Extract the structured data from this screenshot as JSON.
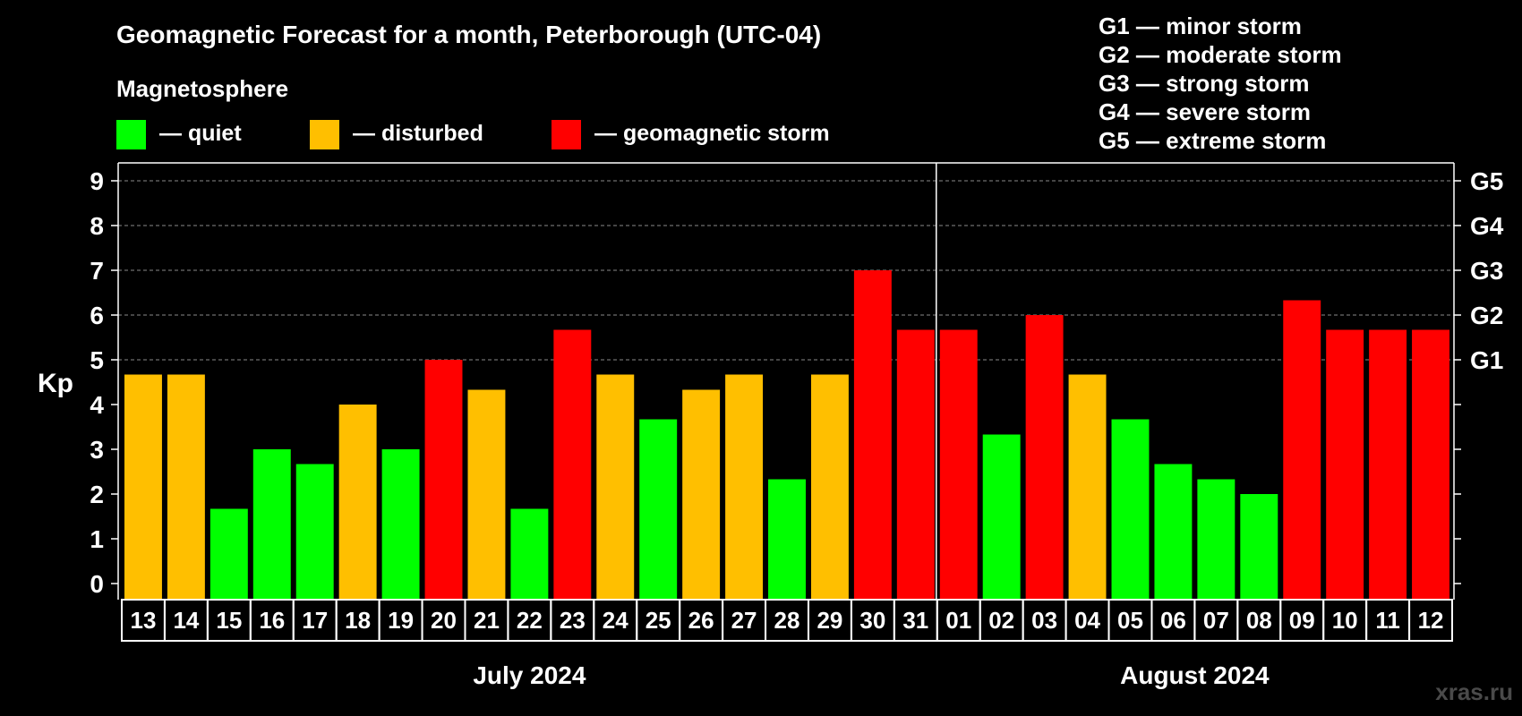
{
  "header": {
    "title": "Geomagnetic Forecast for a month, Peterborough (UTC-04)",
    "subtitle": "Magnetosphere"
  },
  "legend": {
    "quiet": "— quiet",
    "disturbed": "— disturbed",
    "storm": "— geomagnetic storm"
  },
  "g_legend": [
    "G1 — minor storm",
    "G2 — moderate storm",
    "G3 — strong storm",
    "G4 — severe storm",
    "G5 — extreme storm"
  ],
  "watermark": "xras.ru",
  "colors": {
    "quiet": "#00ff00",
    "disturbed": "#ffbf00",
    "storm": "#ff0000",
    "background": "#000000",
    "axis": "#ffffff",
    "grid": "#8a8a8a"
  },
  "chart_data": {
    "type": "bar",
    "title": "Geomagnetic Forecast for a month, Peterborough (UTC-04)",
    "ylabel": "Kp",
    "ylim": [
      0,
      9
    ],
    "y_ticks": [
      "0",
      "1",
      "2",
      "3",
      "4",
      "5",
      "6",
      "7",
      "8",
      "9"
    ],
    "grid_y": [
      5,
      6,
      7,
      8,
      9
    ],
    "g_ticks": [
      {
        "label": "G1",
        "kp": 5
      },
      {
        "label": "G2",
        "kp": 6
      },
      {
        "label": "G3",
        "kp": 7
      },
      {
        "label": "G4",
        "kp": 8
      },
      {
        "label": "G5",
        "kp": 9
      }
    ],
    "categories": [
      "13",
      "14",
      "15",
      "16",
      "17",
      "18",
      "19",
      "20",
      "21",
      "22",
      "23",
      "24",
      "25",
      "26",
      "27",
      "28",
      "29",
      "30",
      "31",
      "01",
      "02",
      "03",
      "04",
      "05",
      "06",
      "07",
      "08",
      "09",
      "10",
      "11",
      "12"
    ],
    "values": [
      4.67,
      4.67,
      1.67,
      3,
      2.67,
      4,
      3,
      5,
      4.33,
      1.67,
      5.67,
      4.67,
      3.67,
      4.33,
      4.67,
      2.33,
      4.67,
      7,
      5.67,
      5.67,
      3.33,
      6,
      4.67,
      3.67,
      2.67,
      2.33,
      2,
      6.33,
      5.67,
      5.67,
      5.67
    ],
    "levels": [
      "disturbed",
      "disturbed",
      "quiet",
      "quiet",
      "quiet",
      "disturbed",
      "quiet",
      "storm",
      "disturbed",
      "quiet",
      "storm",
      "disturbed",
      "quiet",
      "disturbed",
      "disturbed",
      "quiet",
      "disturbed",
      "storm",
      "storm",
      "storm",
      "quiet",
      "storm",
      "disturbed",
      "quiet",
      "quiet",
      "quiet",
      "quiet",
      "storm",
      "storm",
      "storm",
      "storm"
    ],
    "months": [
      {
        "label": "July 2024",
        "start_index": 0,
        "end_index": 18
      },
      {
        "label": "August 2024",
        "start_index": 19,
        "end_index": 30
      }
    ]
  }
}
